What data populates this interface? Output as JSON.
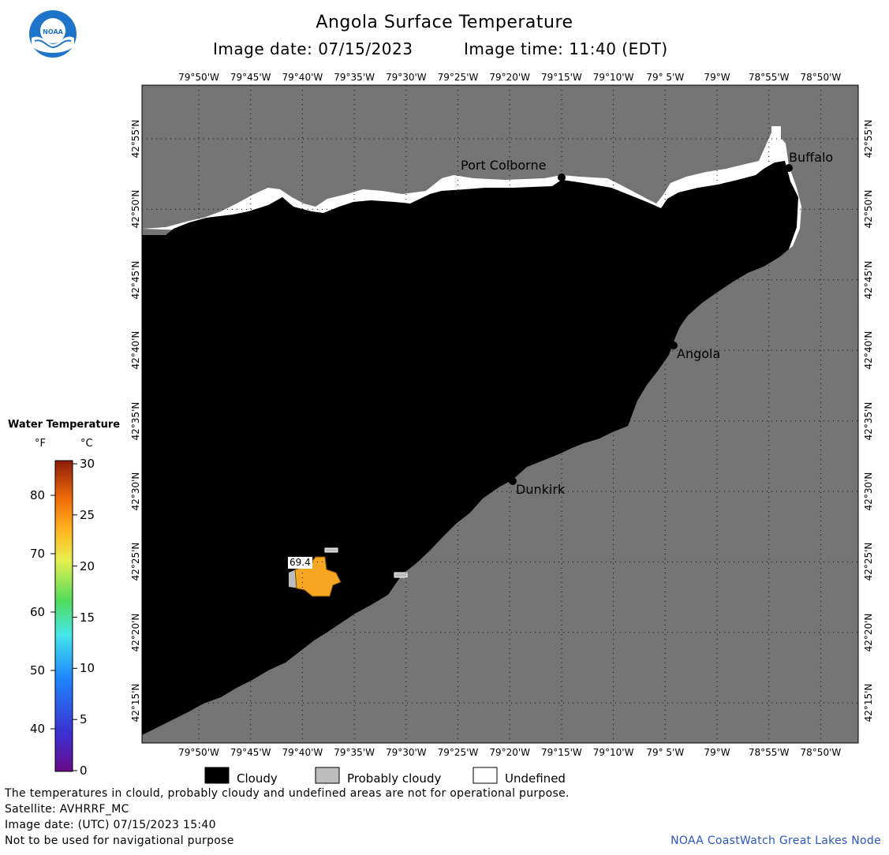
{
  "header": {
    "title": "Angola Surface Temperature",
    "image_date": "Image date: 07/15/2023",
    "image_time": "Image time: 11:40 (EDT)",
    "logo_text": "NOAA"
  },
  "map": {
    "lon_labels": [
      "79°50'W",
      "79°45'W",
      "79°40'W",
      "79°35'W",
      "79°30'W",
      "79°25'W",
      "79°20'W",
      "79°15'W",
      "79°10'W",
      "79° 5'W",
      "79°W",
      "78°55'W",
      "78°50'W"
    ],
    "lat_labels": [
      "42°55'N",
      "42°50'N",
      "42°45'N",
      "42°40'N",
      "42°35'N",
      "42°30'N",
      "42°25'N",
      "42°20'N",
      "42°15'N"
    ],
    "places": {
      "port_colborne": "Port Colborne",
      "buffalo": "Buffalo",
      "angola": "Angola",
      "dunkirk": "Dunkirk"
    },
    "temp_label": "69.4",
    "colors": {
      "land": "#747474",
      "cloudy": "#000000",
      "probably_cloudy": "#bdbdbd",
      "undefined": "#ffffff",
      "warm_water": "#f5a623"
    }
  },
  "legend": {
    "title": "Water Temperature",
    "unit_f": "°F",
    "unit_c": "°C",
    "f_ticks": [
      "80",
      "70",
      "60",
      "50",
      "40"
    ],
    "c_ticks": [
      "30",
      "25",
      "20",
      "15",
      "10",
      "5",
      "0"
    ]
  },
  "key": {
    "cloudy": "Cloudy",
    "probably_cloudy": "Probably cloudy",
    "undefined": "Undefined"
  },
  "footer": {
    "line1": "The temperatures in clould, probably cloudy and undefined areas are not for operational purpose.",
    "line2": "Satellite: AVHRRF_MC",
    "line3": "Image date: (UTC) 07/15/2023  15:40",
    "line4": "Not to be used for navigational purpose",
    "credit": "NOAA CoastWatch Great Lakes Node"
  }
}
